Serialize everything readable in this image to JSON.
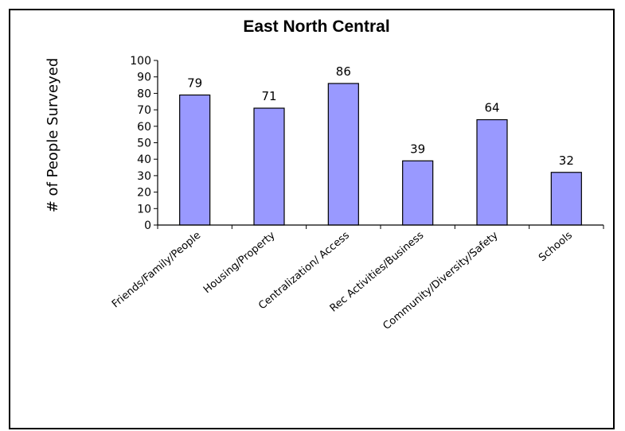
{
  "chart_data": {
    "type": "bar",
    "title": "East North Central",
    "ylabel": "# of People Surveyed",
    "xlabel": "",
    "categories": [
      "Friends/Family/People",
      "Housing/Property",
      "Centralization/ Access",
      "Rec Activities/Business",
      "Community/Diversity/Safety",
      "Schools"
    ],
    "values": [
      79,
      71,
      86,
      39,
      64,
      32
    ],
    "ylim": [
      0,
      100
    ],
    "yticks": [
      0,
      10,
      20,
      30,
      40,
      50,
      60,
      70,
      80,
      90,
      100
    ],
    "grid": false,
    "data_labels": true,
    "bar_color": "#9999ff",
    "bar_edge_color": "#000000"
  }
}
